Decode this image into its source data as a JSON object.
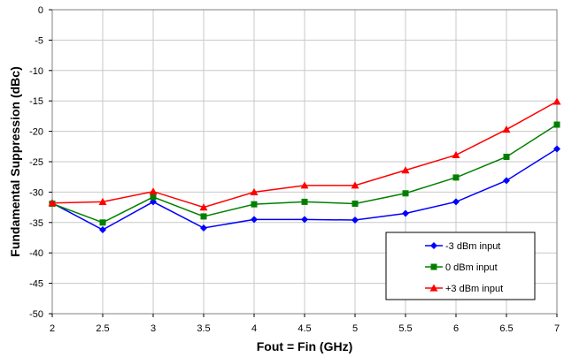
{
  "chart_data": {
    "type": "line",
    "title": "",
    "xlabel": "Fout = Fin (GHz)",
    "ylabel": "Fundamental Suppression (dBc)",
    "x": [
      2,
      2.5,
      3,
      3.5,
      4,
      4.5,
      5,
      5.5,
      6,
      6.5,
      7
    ],
    "xlim": [
      2,
      7
    ],
    "ylim": [
      -50,
      0
    ],
    "xticks": [
      "2",
      "2.5",
      "3",
      "3.5",
      "4",
      "4.5",
      "5",
      "5.5",
      "6",
      "6.5",
      "7"
    ],
    "yticks": [
      "0",
      "-5",
      "-10",
      "-15",
      "-20",
      "-25",
      "-30",
      "-35",
      "-40",
      "-45",
      "-50"
    ],
    "grid": true,
    "legend_position": "bottom-right",
    "series": [
      {
        "name": "-3 dBm input",
        "color": "#0000FF",
        "marker": "diamond",
        "values": [
          -31.8,
          -36.2,
          -31.6,
          -35.9,
          -34.5,
          -34.5,
          -34.6,
          -33.5,
          -31.6,
          -28.1,
          -22.9
        ]
      },
      {
        "name": "0 dBm input",
        "color": "#008000",
        "marker": "square",
        "values": [
          -31.9,
          -35.0,
          -30.8,
          -34.0,
          -32.0,
          -31.6,
          -31.9,
          -30.2,
          -27.6,
          -24.2,
          -18.9
        ]
      },
      {
        "name": "+3 dBm input",
        "color": "#FF0000",
        "marker": "triangle",
        "values": [
          -31.8,
          -31.6,
          -29.9,
          -32.5,
          -30.0,
          -28.9,
          -28.9,
          -26.4,
          -23.9,
          -19.7,
          -15.1
        ]
      }
    ]
  }
}
